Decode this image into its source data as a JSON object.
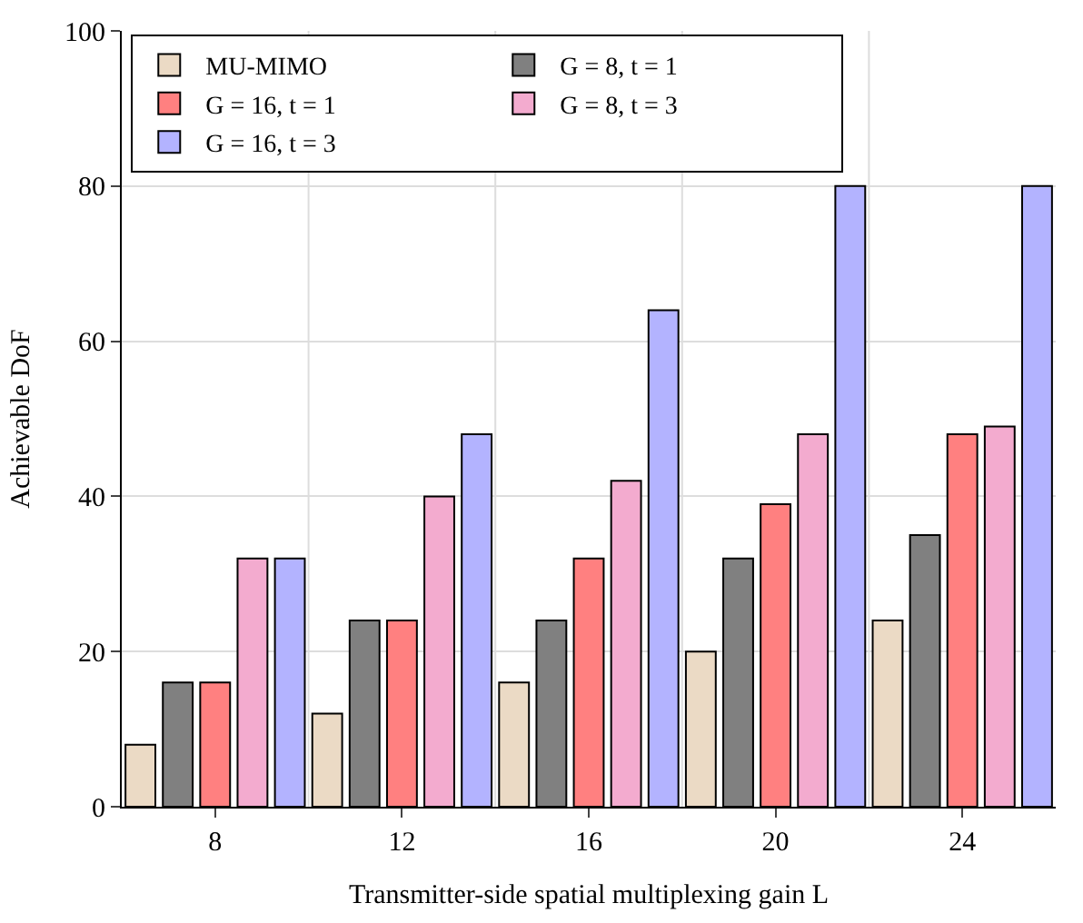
{
  "chart_data": {
    "type": "bar",
    "xlabel": "Transmitter-side spatial multiplexing gain L",
    "ylabel": "Achievable DoF",
    "categories": [
      "8",
      "12",
      "16",
      "20",
      "24"
    ],
    "series": [
      {
        "name": "MU-MIMO",
        "color": "#ebdac5",
        "values": [
          8,
          12,
          16,
          20,
          24
        ]
      },
      {
        "name": "G = 8, t = 1",
        "color": "#808080",
        "values": [
          16,
          24,
          24,
          32,
          35
        ]
      },
      {
        "name": "G = 16, t = 1",
        "color": "#ff8080",
        "values": [
          16,
          24,
          32,
          39,
          48
        ]
      },
      {
        "name": "G = 8, t = 3",
        "color": "#f3abcf",
        "values": [
          32,
          40,
          42,
          48,
          49
        ]
      },
      {
        "name": "G = 16, t = 3",
        "color": "#b3b3ff",
        "values": [
          32,
          48,
          64,
          80,
          80
        ]
      }
    ],
    "ylim": [
      0,
      100
    ],
    "yticks": [
      0,
      20,
      40,
      60,
      80,
      100
    ],
    "grid": true,
    "legend": "top"
  }
}
